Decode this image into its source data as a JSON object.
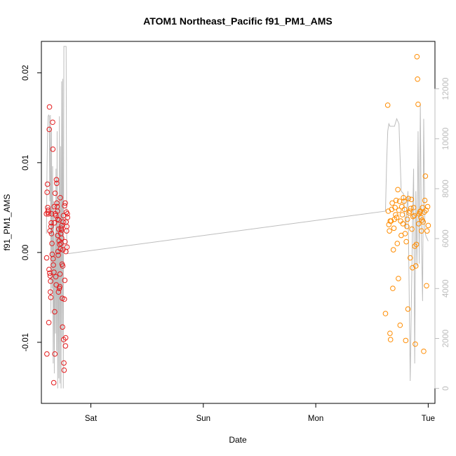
{
  "chart_data": {
    "type": "scatter",
    "title": "ATOM1 Northeast_Pacific f91_PM1_AMS",
    "xlabel": "Date",
    "ylabel": "f91_PM1_AMS",
    "x_ticks": [
      {
        "label": "Sat",
        "value": 0
      },
      {
        "label": "Sun",
        "value": 1
      },
      {
        "label": "Mon",
        "value": 2
      },
      {
        "label": "Tue",
        "value": 3
      }
    ],
    "xlim": [
      -0.44,
      3.06
    ],
    "ylim": [
      -0.0168,
      0.0235
    ],
    "y_ticks": [
      -0.01,
      0.0,
      0.01,
      0.02
    ],
    "y_tick_labels": [
      "-0.01",
      "0.00",
      "0.01",
      "0.02"
    ],
    "y2_ticks": [
      0,
      2000,
      4000,
      6000,
      8000,
      10000,
      12000
    ],
    "y2_tick_labels": [
      "0",
      "2000",
      "4000",
      "6000",
      "8000",
      "10000",
      "12000"
    ],
    "y2lim": [
      -600,
      13900
    ],
    "grid": false,
    "colors": {
      "series_sat": "#e41a1c",
      "series_tue": "#ff8c00",
      "line": "#bdbdbd",
      "right_axis": "#bdbdbd"
    },
    "series": [
      {
        "color": "#e41a1c",
        "marker": "circle-open",
        "points": [
          [
            -0.395,
            0.0043
          ],
          [
            -0.393,
            -0.0006
          ],
          [
            -0.391,
            -0.0113
          ],
          [
            -0.389,
            0.0067
          ],
          [
            -0.386,
            0.0076
          ],
          [
            -0.384,
            0.005
          ],
          [
            -0.382,
            0.0045
          ],
          [
            -0.379,
            0.0047
          ],
          [
            -0.377,
            0.0043
          ],
          [
            -0.374,
            -0.0078
          ],
          [
            -0.372,
            -0.0019
          ],
          [
            -0.37,
            0.0137
          ],
          [
            -0.368,
            0.0162
          ],
          [
            -0.366,
            -0.0023
          ],
          [
            -0.364,
            0.0024
          ],
          [
            -0.362,
            -0.0026
          ],
          [
            -0.36,
            -0.0044
          ],
          [
            -0.358,
            -0.0032
          ],
          [
            -0.356,
            -0.005
          ],
          [
            -0.354,
            0.0029
          ],
          [
            -0.352,
            0.0033
          ],
          [
            -0.35,
            0.0021
          ],
          [
            -0.348,
            0.0043
          ],
          [
            -0.346,
            0.001
          ],
          [
            -0.344,
            -0.0002
          ],
          [
            -0.34,
            0.0145
          ],
          [
            -0.338,
            0.0115
          ],
          [
            -0.336,
            -0.0007
          ],
          [
            -0.334,
            -0.0014
          ],
          [
            -0.33,
            -0.0145
          ],
          [
            -0.328,
            -0.0022
          ],
          [
            -0.326,
            0.0051
          ],
          [
            -0.324,
            0.0033
          ],
          [
            -0.322,
            -0.0066
          ],
          [
            -0.32,
            -0.0113
          ],
          [
            -0.318,
            0.0066
          ],
          [
            -0.316,
            0.0043
          ],
          [
            -0.312,
            -0.0027
          ],
          [
            -0.31,
            0.0041
          ],
          [
            -0.308,
            -0.0036
          ],
          [
            -0.306,
            0.0081
          ],
          [
            -0.304,
            0.0077
          ],
          [
            -0.302,
            0.0055
          ],
          [
            -0.3,
            0.0051
          ],
          [
            -0.298,
            0.0046
          ],
          [
            -0.296,
            0.0037
          ],
          [
            -0.294,
            0.0019
          ],
          [
            -0.292,
            0.0001
          ],
          [
            -0.29,
            -0.0003
          ],
          [
            -0.288,
            -0.0044
          ],
          [
            -0.286,
            0.0026
          ],
          [
            -0.284,
            0.0036
          ],
          [
            -0.282,
            0.0013
          ],
          [
            -0.28,
            -0.004
          ],
          [
            -0.278,
            0.0009
          ],
          [
            -0.276,
            -0.0038
          ],
          [
            -0.274,
            -0.0024
          ],
          [
            -0.272,
            0.0061
          ],
          [
            -0.27,
            0.0004
          ],
          [
            -0.268,
            0.0021
          ],
          [
            -0.266,
            0.001
          ],
          [
            -0.264,
            0.0027
          ],
          [
            -0.262,
            0.0025
          ],
          [
            -0.26,
            0.0016
          ],
          [
            -0.258,
            0.003
          ],
          [
            -0.256,
            -0.0013
          ],
          [
            -0.254,
            -0.0051
          ],
          [
            -0.252,
            -0.0083
          ],
          [
            -0.25,
            -0.0015
          ],
          [
            -0.248,
            0.0003
          ],
          [
            -0.246,
            0.0034
          ],
          [
            -0.244,
            0.0041
          ],
          [
            -0.242,
            -0.0097
          ],
          [
            -0.24,
            -0.0123
          ],
          [
            -0.238,
            -0.0131
          ],
          [
            -0.236,
            -0.0052
          ],
          [
            -0.234,
            0.0052
          ],
          [
            -0.232,
            -0.0031
          ],
          [
            -0.23,
            0.0012
          ],
          [
            -0.228,
            0.0055
          ],
          [
            -0.226,
            -0.0104
          ],
          [
            -0.224,
            -0.0095
          ],
          [
            -0.222,
            0.0001
          ],
          [
            -0.22,
            0.0034
          ],
          [
            -0.218,
            0.0045
          ],
          [
            -0.216,
            0.0024
          ],
          [
            -0.214,
            0.0029
          ],
          [
            -0.212,
            0.0006
          ],
          [
            -0.21,
            0.0043
          ],
          [
            -0.208,
            0.0039
          ]
        ]
      },
      {
        "color": "#ff8c00",
        "marker": "circle-open",
        "points": [
          [
            2.62,
            -0.0068
          ],
          [
            2.64,
            0.0164
          ],
          [
            2.645,
            0.0046
          ],
          [
            2.65,
            0.0031
          ],
          [
            2.655,
            0.0024
          ],
          [
            2.66,
            -0.009
          ],
          [
            2.662,
            0.0035
          ],
          [
            2.665,
            -0.0097
          ],
          [
            2.67,
            0.0035
          ],
          [
            2.675,
            0.0048
          ],
          [
            2.68,
            0.0055
          ],
          [
            2.685,
            -0.004
          ],
          [
            2.69,
            0.0003
          ],
          [
            2.695,
            0.0027
          ],
          [
            2.7,
            0.0037
          ],
          [
            2.705,
            0.005
          ],
          [
            2.71,
            0.0042
          ],
          [
            2.715,
            0.0058
          ],
          [
            2.72,
            0.0039
          ],
          [
            2.725,
            0.001
          ],
          [
            2.73,
            0.007
          ],
          [
            2.735,
            -0.0029
          ],
          [
            2.74,
            0.0047
          ],
          [
            2.745,
            0.0057
          ],
          [
            2.75,
            -0.0081
          ],
          [
            2.755,
            0.0035
          ],
          [
            2.76,
            0.0019
          ],
          [
            2.765,
            0.0051
          ],
          [
            2.77,
            0.0042
          ],
          [
            2.775,
            0.0032
          ],
          [
            2.78,
            0.0061
          ],
          [
            2.785,
            0.0057
          ],
          [
            2.79,
            0.0048
          ],
          [
            2.795,
            0.0021
          ],
          [
            2.8,
            -0.0098
          ],
          [
            2.805,
            0.0012
          ],
          [
            2.81,
            0.0029
          ],
          [
            2.815,
            0.0037
          ],
          [
            2.82,
            -0.0063
          ],
          [
            2.825,
            0.006
          ],
          [
            2.83,
            0.0044
          ],
          [
            2.835,
            0.0046
          ],
          [
            2.84,
            -0.0006
          ],
          [
            2.845,
            0.0049
          ],
          [
            2.85,
            0.0059
          ],
          [
            2.855,
            0.0026
          ],
          [
            2.86,
            -0.0017
          ],
          [
            2.865,
            0.004
          ],
          [
            2.87,
            0.005
          ],
          [
            2.875,
            0.0041
          ],
          [
            2.88,
            0.0007
          ],
          [
            2.885,
            -0.0102
          ],
          [
            2.89,
            -0.0015
          ],
          [
            2.895,
            0.0009
          ],
          [
            2.9,
            0.0218
          ],
          [
            2.905,
            0.0193
          ],
          [
            2.91,
            0.0165
          ],
          [
            2.915,
            0.0032
          ],
          [
            2.92,
            0.0043
          ],
          [
            2.925,
            0.0045
          ],
          [
            2.93,
            0.0046
          ],
          [
            2.935,
            0.0039
          ],
          [
            2.94,
            0.0024
          ],
          [
            2.945,
            0.0036
          ],
          [
            2.95,
            0.005
          ],
          [
            2.955,
            0.0034
          ],
          [
            2.96,
            -0.011
          ],
          [
            2.965,
            0.0045
          ],
          [
            2.97,
            0.0058
          ],
          [
            2.975,
            0.0085
          ],
          [
            2.98,
            0.0047
          ],
          [
            2.985,
            -0.0037
          ],
          [
            2.99,
            0.0024
          ],
          [
            2.995,
            0.0051
          ],
          [
            3.0,
            0.003
          ]
        ]
      }
    ],
    "line_series": {
      "axis": "right",
      "color": "#bdbdbd",
      "points": [
        [
          -0.395,
          6200
        ],
        [
          -0.39,
          8800
        ],
        [
          -0.385,
          10300
        ],
        [
          -0.38,
          10900
        ],
        [
          -0.375,
          10950
        ],
        [
          -0.37,
          10900
        ],
        [
          -0.365,
          7500
        ],
        [
          -0.36,
          10950
        ],
        [
          -0.355,
          3000
        ],
        [
          -0.35,
          10300
        ],
        [
          -0.345,
          4000
        ],
        [
          -0.34,
          8900
        ],
        [
          -0.335,
          1000
        ],
        [
          -0.33,
          7500
        ],
        [
          -0.325,
          600
        ],
        [
          -0.32,
          6200
        ],
        [
          -0.315,
          2200
        ],
        [
          -0.31,
          8800
        ],
        [
          -0.305,
          1500
        ],
        [
          -0.3,
          10300
        ],
        [
          -0.295,
          0
        ],
        [
          -0.29,
          7500
        ],
        [
          -0.285,
          400
        ],
        [
          -0.28,
          10900
        ],
        [
          -0.275,
          200
        ],
        [
          -0.27,
          9700
        ],
        [
          -0.265,
          0
        ],
        [
          -0.26,
          12300
        ],
        [
          -0.255,
          2000
        ],
        [
          -0.25,
          12400
        ],
        [
          -0.245,
          0
        ],
        [
          -0.24,
          13700
        ],
        [
          -0.235,
          13700
        ],
        [
          -0.23,
          13700
        ],
        [
          -0.225,
          13700
        ],
        [
          -0.22,
          13700
        ],
        [
          -0.215,
          6000
        ],
        [
          -0.21,
          5400
        ],
        [
          -0.205,
          5400
        ],
        [
          -0.2,
          5400
        ],
        [
          2.62,
          7100
        ],
        [
          2.63,
          9000
        ],
        [
          2.64,
          10300
        ],
        [
          2.65,
          10600
        ],
        [
          2.66,
          10500
        ],
        [
          2.7,
          10500
        ],
        [
          2.72,
          10800
        ],
        [
          2.74,
          10600
        ],
        [
          2.76,
          7900
        ],
        [
          2.78,
          7800
        ],
        [
          2.8,
          6400
        ],
        [
          2.82,
          7900
        ],
        [
          2.84,
          300
        ],
        [
          2.86,
          6400
        ],
        [
          2.87,
          8800
        ],
        [
          2.88,
          1000
        ],
        [
          2.89,
          7900
        ],
        [
          2.9,
          4900
        ],
        [
          2.91,
          10300
        ],
        [
          2.92,
          5000
        ],
        [
          2.93,
          11400
        ],
        [
          2.94,
          5900
        ],
        [
          2.95,
          3500
        ],
        [
          2.96,
          10800
        ],
        [
          2.97,
          6300
        ],
        [
          2.98,
          6100
        ],
        [
          2.99,
          6000
        ],
        [
          3.0,
          5900
        ]
      ]
    }
  }
}
